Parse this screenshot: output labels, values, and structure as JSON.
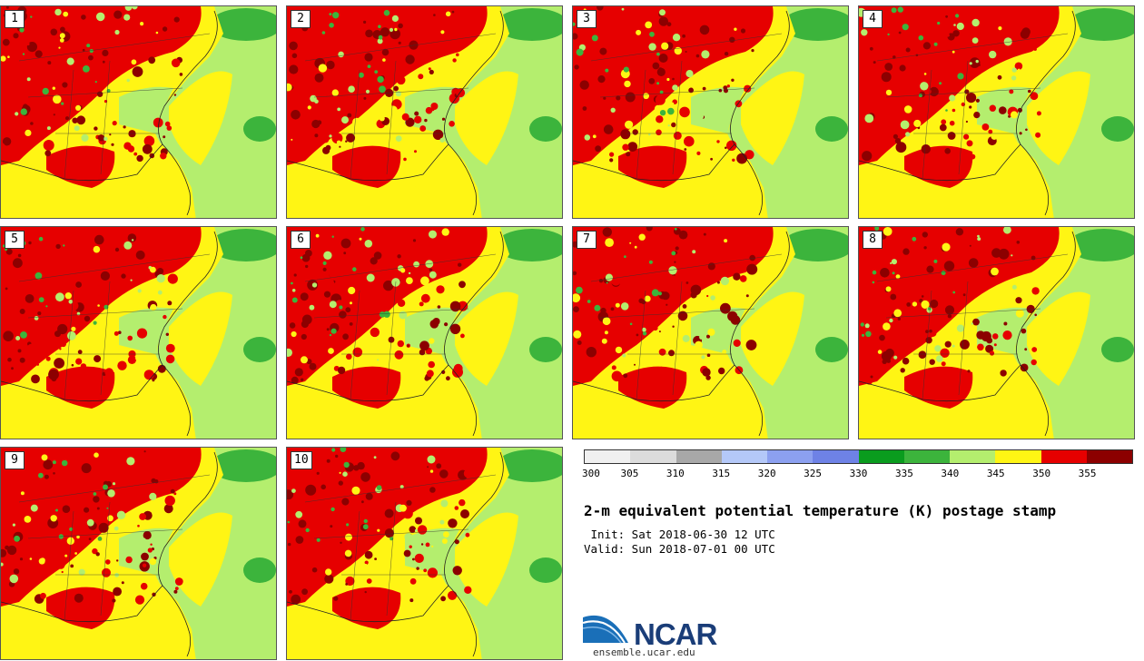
{
  "panels": [
    {
      "label": "1"
    },
    {
      "label": "2"
    },
    {
      "label": "3"
    },
    {
      "label": "4"
    },
    {
      "label": "5"
    },
    {
      "label": "6"
    },
    {
      "label": "7"
    },
    {
      "label": "8"
    },
    {
      "label": "9"
    },
    {
      "label": "10"
    }
  ],
  "colorbar": {
    "ticks": [
      "300",
      "305",
      "310",
      "315",
      "320",
      "325",
      "330",
      "335",
      "340",
      "345",
      "350",
      "355"
    ],
    "colors": [
      "#f0f0f0",
      "#dcdcdc",
      "#a8a8a8",
      "#b4c8f8",
      "#8ca0f0",
      "#6e82e6",
      "#0a9c1e",
      "#3cb43c",
      "#b4ee6e",
      "#fff514",
      "#e60000",
      "#8c0000"
    ]
  },
  "title": "2-m equivalent potential temperature (K) postage stamp",
  "init": " Init: Sat 2018-06-30 12 UTC",
  "valid": "Valid: Sun 2018-07-01 00 UTC",
  "logo": {
    "text": "NCAR",
    "url": "ensemble.ucar.edu"
  },
  "map_colors": {
    "land_high": "#e60000",
    "land_very_high": "#8c0000",
    "mid": "#fff514",
    "ocean": "#b4ee6e",
    "cool": "#3cb43c"
  }
}
